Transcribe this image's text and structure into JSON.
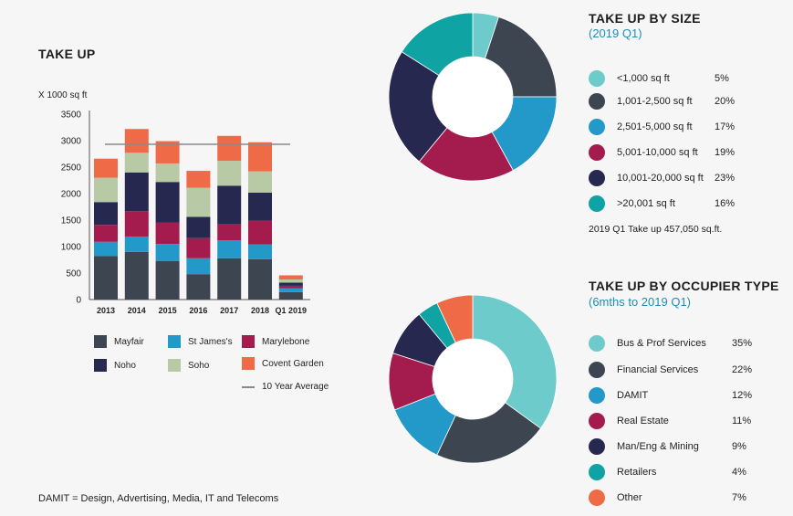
{
  "colors": {
    "teal_light": "#6ecbcb",
    "slate": "#3d4650",
    "blue": "#2399c9",
    "crimson": "#a31c4d",
    "navy": "#27284f",
    "teal": "#0fa3a3",
    "sage": "#b7c9a5",
    "orange": "#ef6a47",
    "avg_line": "#8a8a8a"
  },
  "bar_chart": {
    "title": "TAKE UP",
    "unit_label": "X 1000 sq ft",
    "footnote": "DAMIT = Design, Advertising, Media, IT and Telecoms",
    "legend": [
      {
        "label": "Mayfair",
        "color_key": "slate"
      },
      {
        "label": "St James's",
        "color_key": "blue"
      },
      {
        "label": "Marylebone",
        "color_key": "crimson"
      },
      {
        "label": "Noho",
        "color_key": "navy"
      },
      {
        "label": "Soho",
        "color_key": "sage"
      },
      {
        "label": "Covent Garden",
        "color_key": "orange"
      }
    ],
    "avg_legend_label": "10 Year Average"
  },
  "chart_data": [
    {
      "type": "bar",
      "stacked": true,
      "title": "TAKE UP",
      "ylabel": "X 1000 sq ft",
      "xlabel": "",
      "ylim": [
        0,
        3500
      ],
      "yticks": [
        0,
        500,
        1000,
        1500,
        2000,
        2500,
        3000,
        3500
      ],
      "categories": [
        "2013",
        "2014",
        "2015",
        "2016",
        "2017",
        "2018",
        "Q1 2019"
      ],
      "series": [
        {
          "name": "Mayfair",
          "color_key": "slate",
          "values": [
            820,
            900,
            730,
            480,
            780,
            760,
            140
          ]
        },
        {
          "name": "St James's",
          "color_key": "blue",
          "values": [
            270,
            290,
            320,
            300,
            340,
            280,
            70
          ]
        },
        {
          "name": "Marylebone",
          "color_key": "crimson",
          "values": [
            320,
            480,
            400,
            380,
            300,
            450,
            50
          ]
        },
        {
          "name": "Noho",
          "color_key": "navy",
          "values": [
            430,
            730,
            770,
            400,
            730,
            530,
            60
          ]
        },
        {
          "name": "Soho",
          "color_key": "sage",
          "values": [
            460,
            370,
            350,
            550,
            470,
            400,
            60
          ]
        },
        {
          "name": "Covent Garden",
          "color_key": "orange",
          "values": [
            360,
            450,
            420,
            320,
            470,
            550,
            77
          ]
        }
      ],
      "reference_line": {
        "name": "10 Year Average",
        "value": 2930
      }
    },
    {
      "type": "pie",
      "donut": true,
      "title": "TAKE UP BY SIZE",
      "subtitle": "(2019 Q1)",
      "labels": [
        "<1,000 sq ft",
        "1,001-2,500 sq ft",
        "2,501-5,000 sq ft",
        "5,001-10,000 sq ft",
        "10,001-20,000 sq ft",
        ">20,001 sq ft"
      ],
      "values": [
        5,
        20,
        17,
        19,
        23,
        16
      ],
      "color_keys": [
        "teal_light",
        "slate",
        "blue",
        "crimson",
        "navy",
        "teal"
      ],
      "note": "2019 Q1 Take up 457,050 sq.ft."
    },
    {
      "type": "pie",
      "donut": true,
      "title": "TAKE UP BY OCCUPIER TYPE",
      "subtitle": "(6mths to 2019 Q1)",
      "labels": [
        "Bus & Prof Services",
        "Financial Services",
        "DAMIT",
        "Real Estate",
        "Man/Eng & Mining",
        "Retailers",
        "Other"
      ],
      "values": [
        35,
        22,
        12,
        11,
        9,
        4,
        7
      ],
      "color_keys": [
        "teal_light",
        "slate",
        "blue",
        "crimson",
        "navy",
        "teal",
        "orange"
      ]
    }
  ]
}
